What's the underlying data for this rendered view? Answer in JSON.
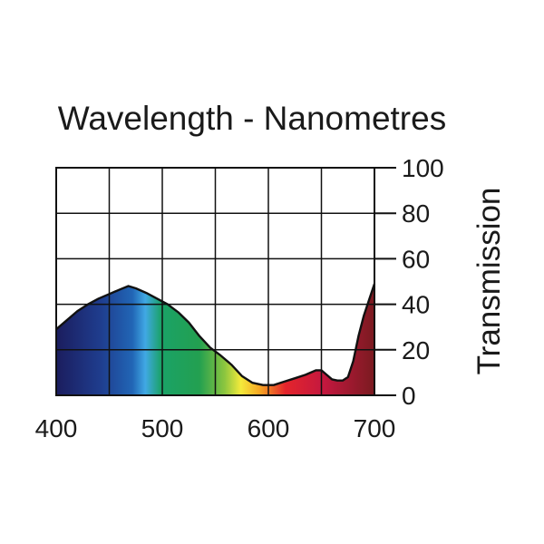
{
  "chart_data": {
    "type": "area",
    "title": "Wavelength - Nanometres",
    "xlabel": "Wavelength - Nanometres",
    "ylabel": "Transmission",
    "xlim": [
      400,
      700
    ],
    "ylim": [
      0,
      100
    ],
    "x_ticks": [
      400,
      500,
      600,
      700
    ],
    "y_ticks": [
      0,
      20,
      40,
      60,
      80,
      100
    ],
    "x_grid": [
      400,
      450,
      500,
      550,
      600,
      650,
      700
    ],
    "y_grid": [
      0,
      20,
      40,
      60,
      80,
      100
    ],
    "grid": true,
    "fill": "visible-spectrum gradient under curve",
    "series": [
      {
        "name": "Transmission",
        "x": [
          400,
          410,
          420,
          430,
          440,
          450,
          460,
          468,
          475,
          485,
          495,
          505,
          515,
          525,
          535,
          545,
          555,
          565,
          575,
          585,
          595,
          605,
          615,
          625,
          635,
          645,
          650,
          655,
          660,
          665,
          670,
          675,
          680,
          685,
          690,
          695,
          700
        ],
        "values": [
          29,
          33,
          37,
          40,
          42.5,
          44.5,
          46.5,
          48,
          47,
          45,
          42.5,
          40,
          36.5,
          32,
          26,
          21,
          17.5,
          13.5,
          8.5,
          5.5,
          4.5,
          4.5,
          6,
          7.5,
          9,
          11,
          11,
          9,
          7,
          6.5,
          6.5,
          8,
          15,
          26,
          35,
          42,
          49
        ]
      }
    ],
    "spectrum_colors": [
      "#1b1d5e",
      "#1f3d8e",
      "#2166b6",
      "#40a8e4",
      "#1aa267",
      "#23a050",
      "#8dc63f",
      "#f4ea3b",
      "#f6a623",
      "#e4252c",
      "#c4183f",
      "#7a1a20"
    ]
  }
}
